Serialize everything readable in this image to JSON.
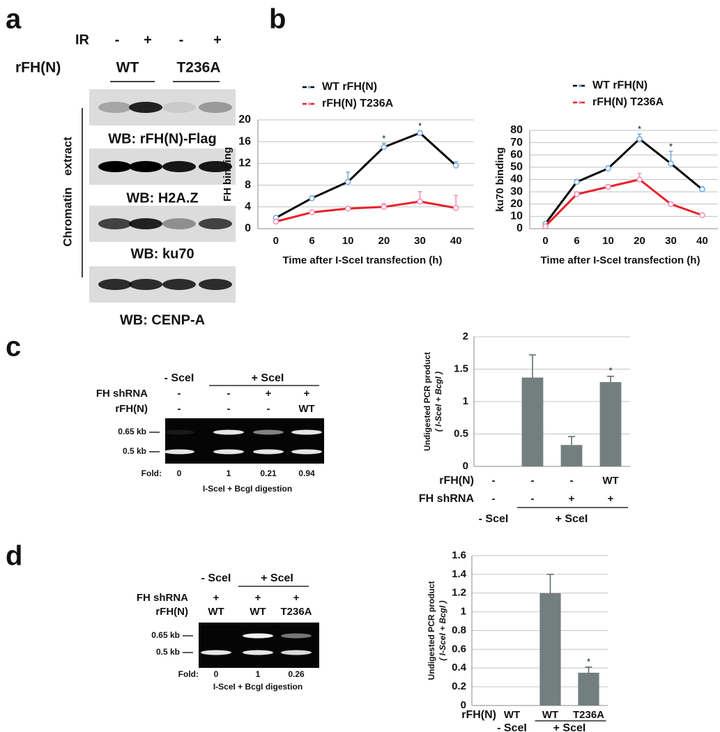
{
  "panels": {
    "a": {
      "label": "a",
      "ir_label": "IR",
      "ir": [
        "-",
        "+",
        "-",
        "+"
      ],
      "rfh_label": "rFH(N)",
      "groups": [
        "WT",
        "T236A"
      ],
      "side_label": "Chromatin extract",
      "blots": [
        "WB: rFH(N)-Flag",
        "WB: H2A.Z",
        "WB: ku70",
        "WB: CENP-A"
      ]
    },
    "b": {
      "label": "b"
    },
    "c": {
      "label": "c",
      "gel": {
        "groups": [
          "- SceI",
          "+ SceI"
        ],
        "rows": [
          {
            "label": "FH shRNA",
            "values": [
              "-",
              "-",
              "+",
              "+"
            ]
          },
          {
            "label": "rFH(N)",
            "values": [
              "-",
              "-",
              "-",
              "WT"
            ]
          }
        ],
        "markers": [
          "0.65 kb",
          "0.5 kb"
        ],
        "fold_label": "Fold:",
        "fold": [
          0,
          1,
          0.21,
          0.94
        ],
        "caption": "I-SceI + BcgI digestion"
      }
    },
    "d": {
      "label": "d",
      "gel": {
        "groups": [
          "- SceI",
          "+ SceI"
        ],
        "rows": [
          {
            "label": "FH shRNA",
            "values": [
              "+",
              "+",
              "+"
            ]
          },
          {
            "label": "rFH(N)",
            "values": [
              "WT",
              "WT",
              "T236A"
            ]
          }
        ],
        "markers": [
          "0.65 kb",
          "0.5 kb"
        ],
        "fold_label": "Fold:",
        "fold": [
          0,
          1,
          0.26
        ],
        "caption": "I-SceI + BcgI digestion"
      }
    }
  },
  "chart_data": [
    {
      "type": "line",
      "xlabel": "Time after I-SceI transfection (h)",
      "ylabel": "FH binding",
      "categories": [
        0,
        6,
        10,
        20,
        30,
        40
      ],
      "ylim": [
        0,
        20
      ],
      "yticks": [
        0,
        4,
        8,
        12,
        16,
        20
      ],
      "grid": true,
      "series": [
        {
          "name": "WT rFH(N)",
          "color": "#000000",
          "marker_color": "#6fa8dc",
          "values": [
            2,
            5.6,
            8.6,
            15,
            17.6,
            11.6
          ],
          "errors": [
            0.3,
            0.4,
            1.8,
            0.7,
            0.4,
            0.7
          ],
          "markers": [
            null,
            null,
            null,
            "*",
            "*",
            null
          ]
        },
        {
          "name": "rFH(N) T236A",
          "color": "#e8202a",
          "marker_color": "#f08cb0",
          "values": [
            1.3,
            3,
            3.7,
            4,
            5,
            3.8
          ],
          "errors": [
            0.2,
            0.4,
            0.3,
            0.6,
            1.8,
            2.3
          ],
          "markers": [
            null,
            null,
            null,
            null,
            null,
            null
          ]
        }
      ]
    },
    {
      "type": "line",
      "xlabel": "Time after I-SceI transfection (h)",
      "ylabel": "ku70 binding",
      "categories": [
        0,
        6,
        10,
        20,
        30,
        40
      ],
      "ylim": [
        0,
        80
      ],
      "yticks": [
        0,
        10,
        20,
        30,
        40,
        50,
        60,
        70,
        80
      ],
      "grid": true,
      "series": [
        {
          "name": "WT rFH(N)",
          "color": "#000000",
          "marker_color": "#6fa8dc",
          "values": [
            4,
            38,
            49,
            73,
            53,
            32
          ],
          "errors": [
            1,
            2,
            2,
            4,
            10,
            2
          ],
          "markers": [
            null,
            null,
            null,
            "*",
            "*",
            null
          ]
        },
        {
          "name": "rFH(N) T236A",
          "color": "#e8202a",
          "marker_color": "#f08cb0",
          "values": [
            2,
            28,
            34,
            40,
            20,
            11
          ],
          "errors": [
            1,
            2,
            2,
            5,
            1,
            1
          ],
          "markers": [
            null,
            null,
            null,
            null,
            null,
            null
          ]
        }
      ]
    },
    {
      "type": "bar",
      "ylabel": "Undigested PCR product",
      "ylabel2": "( I-SceI + BcgI )",
      "ylim": [
        0,
        2
      ],
      "yticks": [
        0,
        0.5,
        1,
        1.5,
        2
      ],
      "grid": true,
      "color": "#737f7f",
      "values": [
        0,
        1.37,
        0.33,
        1.3
      ],
      "errors": [
        null,
        0.35,
        0.13,
        0.09
      ],
      "markers": [
        null,
        null,
        null,
        "*"
      ],
      "rows": [
        {
          "label": "rFH(N)",
          "values": [
            "-",
            "-",
            "-",
            "WT"
          ]
        },
        {
          "label": "FH shRNA",
          "values": [
            "-",
            "-",
            "+",
            "+"
          ]
        }
      ],
      "groups": [
        "- SceI",
        "+ SceI"
      ]
    },
    {
      "type": "bar",
      "ylabel": "Undigested PCR product",
      "ylabel2": "( I-SceI + BcgI )",
      "ylim": [
        0,
        1.6
      ],
      "yticks": [
        0,
        0.2,
        0.4,
        0.6,
        0.8,
        1,
        1.2,
        1.4,
        1.6
      ],
      "grid": true,
      "color": "#737f7f",
      "values": [
        0,
        1.2,
        0.35
      ],
      "errors": [
        null,
        0.2,
        0.06
      ],
      "markers": [
        null,
        null,
        "*"
      ],
      "rows": [
        {
          "label": "rFH(N)",
          "values": [
            "WT",
            "WT",
            "T236A"
          ]
        }
      ],
      "groups": [
        "- SceI",
        "+ SceI"
      ]
    }
  ]
}
